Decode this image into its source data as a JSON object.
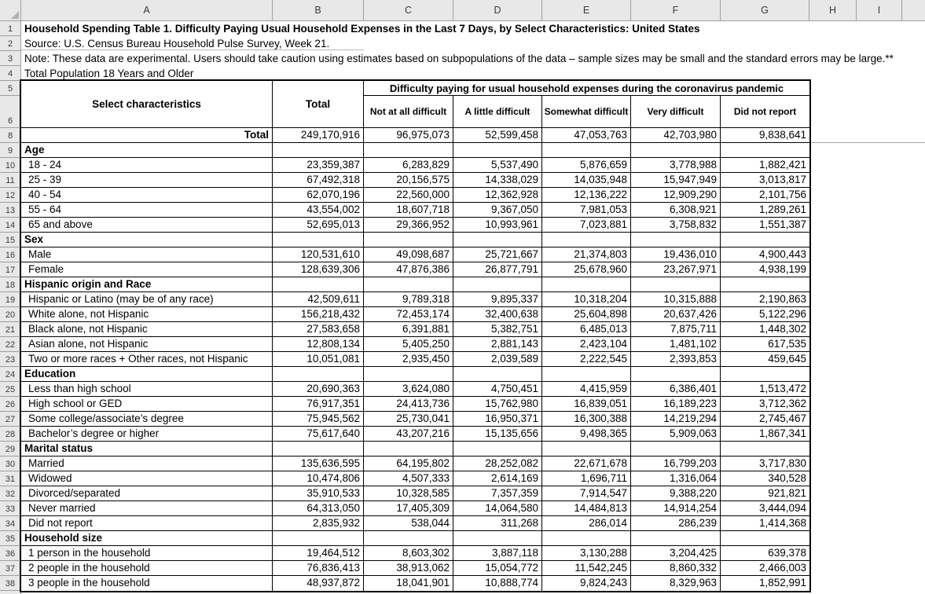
{
  "sheet": {
    "column_letters": [
      "A",
      "B",
      "C",
      "D",
      "E",
      "F",
      "G",
      "H",
      "I"
    ],
    "row_numbers": [
      "1",
      "2",
      "3",
      "4",
      "5",
      "6",
      "8",
      "9",
      "10",
      "11",
      "12",
      "13",
      "14",
      "15",
      "16",
      "17",
      "18",
      "19",
      "20",
      "21",
      "22",
      "23",
      "24",
      "25",
      "26",
      "27",
      "28",
      "29",
      "30",
      "31",
      "32",
      "33",
      "34",
      "35",
      "36",
      "37",
      "38"
    ]
  },
  "doc": {
    "lines": [
      {
        "text": "Household Spending Table 1. Difficulty Paying Usual Household Expenses in the Last 7 Days, by Select Characteristics: United States",
        "bold": true
      },
      {
        "text": "Source: U.S. Census Bureau Household Pulse Survey, Week 21.",
        "bold": false
      },
      {
        "text": "Note: These data are experimental. Users should take caution using estimates based on subpopulations of the data – sample sizes may be small and the standard errors may be large.**",
        "bold": false
      },
      {
        "text": "Total Population 18 Years and Older",
        "bold": false
      }
    ]
  },
  "table": {
    "header": {
      "select_characteristics": "Select characteristics",
      "total_label": "Total",
      "span_header": "Difficulty paying for usual household expenses during the coronavirus pandemic",
      "sub_headers": [
        "Not at all difficult",
        "A little difficult",
        "Somewhat difficult",
        "Very difficult",
        "Did not report"
      ]
    },
    "rows": [
      {
        "row": "8",
        "type": "total",
        "label": "Total",
        "values": [
          "249,170,916",
          "96,975,073",
          "52,599,458",
          "47,053,763",
          "42,703,980",
          "9,838,641"
        ]
      },
      {
        "row": "9",
        "type": "section",
        "label": "Age"
      },
      {
        "row": "10",
        "type": "data",
        "label": "18 - 24",
        "values": [
          "23,359,387",
          "6,283,829",
          "5,537,490",
          "5,876,659",
          "3,778,988",
          "1,882,421"
        ]
      },
      {
        "row": "11",
        "type": "data",
        "label": "25 - 39",
        "values": [
          "67,492,318",
          "20,156,575",
          "14,338,029",
          "14,035,948",
          "15,947,949",
          "3,013,817"
        ]
      },
      {
        "row": "12",
        "type": "data",
        "label": "40 - 54",
        "values": [
          "62,070,196",
          "22,560,000",
          "12,362,928",
          "12,136,222",
          "12,909,290",
          "2,101,756"
        ]
      },
      {
        "row": "13",
        "type": "data",
        "label": "55 - 64",
        "values": [
          "43,554,002",
          "18,607,718",
          "9,367,050",
          "7,981,053",
          "6,308,921",
          "1,289,261"
        ]
      },
      {
        "row": "14",
        "type": "data",
        "label": "65 and above",
        "values": [
          "52,695,013",
          "29,366,952",
          "10,993,961",
          "7,023,881",
          "3,758,832",
          "1,551,387"
        ]
      },
      {
        "row": "15",
        "type": "section",
        "label": "Sex"
      },
      {
        "row": "16",
        "type": "data",
        "label": "Male",
        "values": [
          "120,531,610",
          "49,098,687",
          "25,721,667",
          "21,374,803",
          "19,436,010",
          "4,900,443"
        ]
      },
      {
        "row": "17",
        "type": "data",
        "label": "Female",
        "values": [
          "128,639,306",
          "47,876,386",
          "26,877,791",
          "25,678,960",
          "23,267,971",
          "4,938,199"
        ]
      },
      {
        "row": "18",
        "type": "section",
        "label": "Hispanic origin and Race"
      },
      {
        "row": "19",
        "type": "data",
        "label": "Hispanic or Latino (may be of any race)",
        "values": [
          "42,509,611",
          "9,789,318",
          "9,895,337",
          "10,318,204",
          "10,315,888",
          "2,190,863"
        ]
      },
      {
        "row": "20",
        "type": "data",
        "label": "White alone, not Hispanic",
        "values": [
          "156,218,432",
          "72,453,174",
          "32,400,638",
          "25,604,898",
          "20,637,426",
          "5,122,296"
        ]
      },
      {
        "row": "21",
        "type": "data",
        "label": "Black alone, not Hispanic",
        "values": [
          "27,583,658",
          "6,391,881",
          "5,382,751",
          "6,485,013",
          "7,875,711",
          "1,448,302"
        ]
      },
      {
        "row": "22",
        "type": "data",
        "label": "Asian alone, not Hispanic",
        "values": [
          "12,808,134",
          "5,405,250",
          "2,881,143",
          "2,423,104",
          "1,481,102",
          "617,535"
        ]
      },
      {
        "row": "23",
        "type": "data",
        "label": "Two or more races + Other races, not Hispanic",
        "values": [
          "10,051,081",
          "2,935,450",
          "2,039,589",
          "2,222,545",
          "2,393,853",
          "459,645"
        ]
      },
      {
        "row": "24",
        "type": "section",
        "label": "Education"
      },
      {
        "row": "25",
        "type": "data",
        "label": "Less than high school",
        "values": [
          "20,690,363",
          "3,624,080",
          "4,750,451",
          "4,415,959",
          "6,386,401",
          "1,513,472"
        ]
      },
      {
        "row": "26",
        "type": "data",
        "label": "High school or GED",
        "values": [
          "76,917,351",
          "24,413,736",
          "15,762,980",
          "16,839,051",
          "16,189,223",
          "3,712,362"
        ]
      },
      {
        "row": "27",
        "type": "data",
        "label": "Some college/associate’s degree",
        "values": [
          "75,945,562",
          "25,730,041",
          "16,950,371",
          "16,300,388",
          "14,219,294",
          "2,745,467"
        ]
      },
      {
        "row": "28",
        "type": "data",
        "label": "Bachelor’s degree or higher",
        "values": [
          "75,617,640",
          "43,207,216",
          "15,135,656",
          "9,498,365",
          "5,909,063",
          "1,867,341"
        ]
      },
      {
        "row": "29",
        "type": "section",
        "label": "Marital status"
      },
      {
        "row": "30",
        "type": "data",
        "label": "Married",
        "values": [
          "135,636,595",
          "64,195,802",
          "28,252,082",
          "22,671,678",
          "16,799,203",
          "3,717,830"
        ]
      },
      {
        "row": "31",
        "type": "data",
        "label": "Widowed",
        "values": [
          "10,474,806",
          "4,507,333",
          "2,614,169",
          "1,696,711",
          "1,316,064",
          "340,528"
        ]
      },
      {
        "row": "32",
        "type": "data",
        "label": "Divorced/separated",
        "values": [
          "35,910,533",
          "10,328,585",
          "7,357,359",
          "7,914,547",
          "9,388,220",
          "921,821"
        ]
      },
      {
        "row": "33",
        "type": "data",
        "label": "Never married",
        "values": [
          "64,313,050",
          "17,405,309",
          "14,064,580",
          "14,484,813",
          "14,914,254",
          "3,444,094"
        ]
      },
      {
        "row": "34",
        "type": "data",
        "label": "Did not report",
        "values": [
          "2,835,932",
          "538,044",
          "311,268",
          "286,014",
          "286,239",
          "1,414,368"
        ]
      },
      {
        "row": "35",
        "type": "section",
        "label": "Household size"
      },
      {
        "row": "36",
        "type": "data",
        "label": "1 person in the household",
        "values": [
          "19,464,512",
          "8,603,302",
          "3,887,118",
          "3,130,288",
          "3,204,425",
          "639,378"
        ]
      },
      {
        "row": "37",
        "type": "data",
        "label": "2 people in the household",
        "values": [
          "76,836,413",
          "38,913,062",
          "15,054,772",
          "11,542,245",
          "8,860,332",
          "2,466,003"
        ]
      },
      {
        "row": "38",
        "type": "data",
        "label": "3 people in the household",
        "values": [
          "48,937,872",
          "18,041,901",
          "10,888,774",
          "9,824,243",
          "8,329,963",
          "1,852,991"
        ]
      }
    ]
  }
}
